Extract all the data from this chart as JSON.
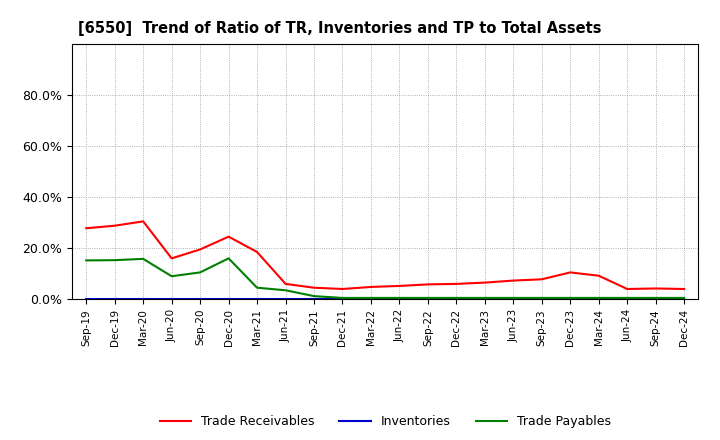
{
  "title": "[6550]  Trend of Ratio of TR, Inventories and TP to Total Assets",
  "x_labels": [
    "Sep-19",
    "Dec-19",
    "Mar-20",
    "Jun-20",
    "Sep-20",
    "Dec-20",
    "Mar-21",
    "Jun-21",
    "Sep-21",
    "Dec-21",
    "Mar-22",
    "Jun-22",
    "Sep-22",
    "Dec-22",
    "Mar-23",
    "Jun-23",
    "Sep-23",
    "Dec-23",
    "Mar-24",
    "Jun-24",
    "Sep-24",
    "Dec-24"
  ],
  "trade_receivables": [
    0.278,
    0.288,
    0.305,
    0.16,
    0.195,
    0.245,
    0.185,
    0.06,
    0.045,
    0.04,
    0.048,
    0.052,
    0.058,
    0.06,
    0.065,
    0.073,
    0.078,
    0.105,
    0.092,
    0.04,
    0.042,
    0.04
  ],
  "inventories": [
    0.0,
    0.0,
    0.0,
    0.0,
    0.0,
    0.0,
    0.0,
    0.0,
    0.0,
    0.0,
    0.0,
    0.0,
    0.0,
    0.0,
    0.0,
    0.0,
    0.0,
    0.0,
    0.0,
    0.0,
    0.0,
    0.0
  ],
  "trade_payables": [
    0.152,
    0.153,
    0.158,
    0.09,
    0.105,
    0.16,
    0.045,
    0.035,
    0.012,
    0.005,
    0.005,
    0.005,
    0.005,
    0.005,
    0.005,
    0.005,
    0.005,
    0.005,
    0.005,
    0.005,
    0.005,
    0.005
  ],
  "colors": {
    "trade_receivables": "#ff0000",
    "inventories": "#0000cc",
    "trade_payables": "#008000"
  },
  "ylim": [
    0.0,
    1.0
  ],
  "yticks": [
    0.0,
    0.2,
    0.4,
    0.6,
    0.8
  ],
  "background_color": "#ffffff",
  "grid_color": "#999999"
}
